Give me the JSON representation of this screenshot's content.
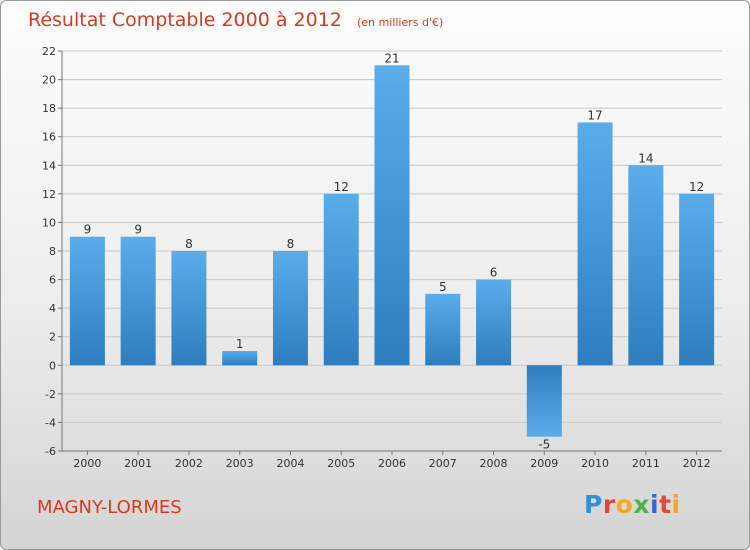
{
  "chart_data": {
    "type": "bar",
    "title": "Résultat Comptable 2000 à 2012",
    "subtitle": "(en milliers d'€)",
    "categories": [
      "2000",
      "2001",
      "2002",
      "2003",
      "2004",
      "2005",
      "2006",
      "2007",
      "2008",
      "2009",
      "2010",
      "2011",
      "2012"
    ],
    "values": [
      9,
      9,
      8,
      1,
      8,
      12,
      21,
      5,
      6,
      -5,
      17,
      14,
      12
    ],
    "ylim": [
      -6,
      22
    ],
    "yticks": [
      -6,
      -4,
      -2,
      0,
      2,
      4,
      6,
      8,
      10,
      12,
      14,
      16,
      18,
      20,
      22
    ],
    "grid": true,
    "xlabel": "",
    "ylabel": ""
  },
  "footer": {
    "commune": "MAGNY-LORMES",
    "brand": "Proxiti"
  },
  "colors": {
    "title": "#d93a1e",
    "bar_light": "#5aaceb",
    "bar_dark": "#2e7ebf",
    "grid": "#c8c8c8",
    "axis": "#777777"
  }
}
